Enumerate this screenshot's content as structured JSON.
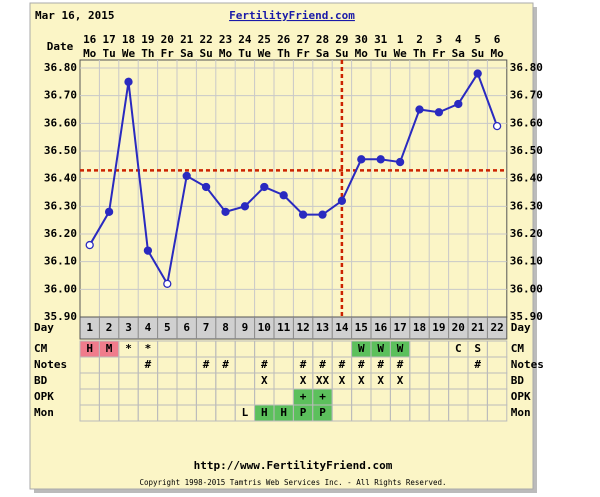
{
  "header": {
    "date": "Mar 16, 2015",
    "site": "FertilityFriend.com"
  },
  "footer": {
    "url": "http://www.FertilityFriend.com",
    "copyright": "Copyright 1998-2015 Tamtris Web Services Inc. - All Rights Reserved."
  },
  "chart_data": {
    "type": "line",
    "x_label": "Date",
    "day_label": "Day",
    "categories": [
      "16",
      "17",
      "18",
      "19",
      "20",
      "21",
      "22",
      "23",
      "24",
      "25",
      "26",
      "27",
      "28",
      "29",
      "30",
      "31",
      "1",
      "2",
      "3",
      "4",
      "5",
      "6"
    ],
    "weekdays": [
      "Mo",
      "Tu",
      "We",
      "Th",
      "Fr",
      "Sa",
      "Su",
      "Mo",
      "Tu",
      "We",
      "Th",
      "Fr",
      "Sa",
      "Su",
      "Mo",
      "Tu",
      "We",
      "Th",
      "Fr",
      "Sa",
      "Su",
      "Mo"
    ],
    "days": [
      1,
      2,
      3,
      4,
      5,
      6,
      7,
      8,
      9,
      10,
      11,
      12,
      13,
      14,
      15,
      16,
      17,
      18,
      19,
      20,
      21,
      22
    ],
    "series": [
      {
        "color": "#2a2ac0",
        "values": [
          36.16,
          36.28,
          36.75,
          36.14,
          36.02,
          36.41,
          36.37,
          36.28,
          36.3,
          36.37,
          36.34,
          36.27,
          36.27,
          36.32,
          36.47,
          36.47,
          36.46,
          36.65,
          36.64,
          36.67,
          36.78,
          36.59
        ],
        "open": [
          true,
          false,
          false,
          false,
          true,
          false,
          false,
          false,
          false,
          false,
          false,
          false,
          false,
          false,
          false,
          false,
          false,
          false,
          false,
          false,
          false,
          true
        ]
      }
    ],
    "ylim": [
      35.9,
      36.8
    ],
    "yticks": [
      {
        "value": 35.9,
        "label": "35.90"
      },
      {
        "value": 36.0,
        "label": "36.00"
      },
      {
        "value": 36.1,
        "label": "36.10"
      },
      {
        "value": 36.2,
        "label": "36.20"
      },
      {
        "value": 36.3,
        "label": "36.30"
      },
      {
        "value": 36.4,
        "label": "36.40"
      },
      {
        "value": 36.5,
        "label": "36.50"
      },
      {
        "value": 36.6,
        "label": "36.60"
      },
      {
        "value": 36.7,
        "label": "36.70"
      },
      {
        "value": 36.8,
        "label": "36.80"
      }
    ],
    "grid": true,
    "coverline": 36.43,
    "ovulation_day": 14,
    "marker_color": "#cc2200",
    "rows": [
      {
        "label": "CM",
        "cells": [
          "H",
          "M",
          "*",
          "*",
          null,
          null,
          null,
          null,
          null,
          null,
          null,
          null,
          null,
          null,
          "W",
          "W",
          "W",
          null,
          null,
          "C",
          "S",
          null
        ],
        "fills": [
          "#f07c8c",
          "#f07c8c",
          null,
          null,
          null,
          null,
          null,
          null,
          null,
          null,
          null,
          null,
          null,
          null,
          "#5cc05c",
          "#5cc05c",
          "#5cc05c",
          null,
          null,
          null,
          null,
          null
        ]
      },
      {
        "label": "Notes",
        "cells": [
          null,
          null,
          null,
          "#",
          null,
          null,
          "#",
          "#",
          null,
          "#",
          null,
          "#",
          "#",
          "#",
          "#",
          "#",
          "#",
          null,
          null,
          null,
          "#",
          null
        ],
        "fills": [
          null,
          null,
          null,
          null,
          null,
          null,
          null,
          null,
          null,
          null,
          null,
          null,
          null,
          null,
          null,
          null,
          null,
          null,
          null,
          null,
          null,
          null
        ]
      },
      {
        "label": "BD",
        "cells": [
          null,
          null,
          null,
          null,
          null,
          null,
          null,
          null,
          null,
          "X",
          null,
          "X",
          "XX",
          "X",
          "X",
          "X",
          "X",
          null,
          null,
          null,
          null,
          null
        ],
        "fills": [
          null,
          null,
          null,
          null,
          null,
          null,
          null,
          null,
          null,
          null,
          null,
          null,
          null,
          null,
          null,
          null,
          null,
          null,
          null,
          null,
          null,
          null
        ]
      },
      {
        "label": "OPK",
        "cells": [
          null,
          null,
          null,
          null,
          null,
          null,
          null,
          null,
          null,
          null,
          null,
          "+",
          "+",
          null,
          null,
          null,
          null,
          null,
          null,
          null,
          null,
          null
        ],
        "fills": [
          null,
          null,
          null,
          null,
          null,
          null,
          null,
          null,
          null,
          null,
          null,
          "#5cc05c",
          "#5cc05c",
          null,
          null,
          null,
          null,
          null,
          null,
          null,
          null,
          null
        ]
      },
      {
        "label": "Mon",
        "cells": [
          null,
          null,
          null,
          null,
          null,
          null,
          null,
          null,
          "L",
          "H",
          "H",
          "P",
          "P",
          null,
          null,
          null,
          null,
          null,
          null,
          null,
          null,
          null
        ],
        "fills": [
          null,
          null,
          null,
          null,
          null,
          null,
          null,
          null,
          null,
          "#5cc05c",
          "#5cc05c",
          "#5cc05c",
          "#5cc05c",
          null,
          null,
          null,
          null,
          null,
          null,
          null,
          null,
          null
        ]
      }
    ]
  }
}
